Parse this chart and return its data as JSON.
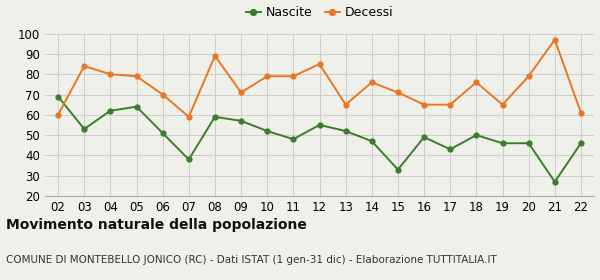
{
  "years": [
    "02",
    "03",
    "04",
    "05",
    "06",
    "07",
    "08",
    "09",
    "10",
    "11",
    "12",
    "13",
    "14",
    "15",
    "16",
    "17",
    "18",
    "19",
    "20",
    "21",
    "22"
  ],
  "nascite": [
    69,
    53,
    62,
    64,
    51,
    38,
    59,
    57,
    52,
    48,
    55,
    52,
    47,
    33,
    49,
    43,
    50,
    46,
    46,
    27,
    46
  ],
  "decessi": [
    60,
    84,
    80,
    79,
    70,
    59,
    89,
    71,
    79,
    79,
    85,
    65,
    76,
    71,
    65,
    65,
    76,
    65,
    79,
    97,
    61
  ],
  "nascite_color": "#3a7d2c",
  "decessi_color": "#e87722",
  "bg_color": "#f0f0eb",
  "grid_color": "#cccccc",
  "ylim_min": 20,
  "ylim_max": 100,
  "yticks": [
    20,
    30,
    40,
    50,
    60,
    70,
    80,
    90,
    100
  ],
  "title": "Movimento naturale della popolazione",
  "subtitle": "COMUNE DI MONTEBELLO JONICO (RC) - Dati ISTAT (1 gen-31 dic) - Elaborazione TUTTITALIA.IT",
  "legend_nascite": "Nascite",
  "legend_decessi": "Decessi",
  "title_fontsize": 10,
  "subtitle_fontsize": 7.5,
  "tick_fontsize": 8.5
}
